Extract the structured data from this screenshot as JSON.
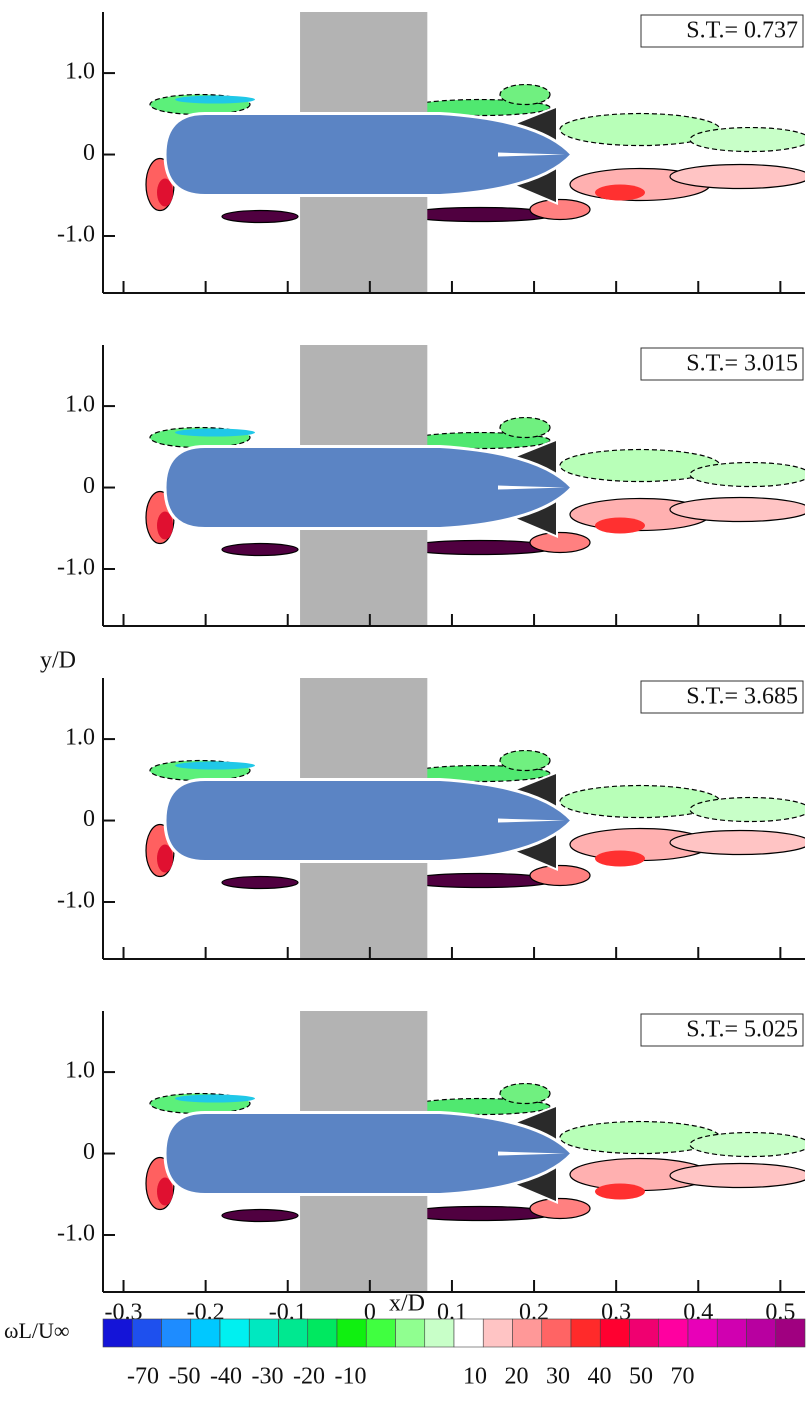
{
  "chart_data": [
    {
      "type": "contour",
      "annotation": "S.T.= 0.737",
      "xlim": [
        -0.325,
        0.53
      ],
      "ylim": [
        -1.7,
        1.75
      ],
      "xticks": [
        -0.3,
        -0.2,
        -0.1,
        0,
        0.1,
        0.2,
        0.3,
        0.4,
        0.5
      ],
      "yticks": [
        {
          "value": -1,
          "label": "-1.0"
        },
        0,
        {
          "value": 1,
          "label": "1.0"
        }
      ],
      "band": [
        -0.085,
        0.07
      ],
      "band_color": "#b3b3b3",
      "body_color": "#5b84c4"
    },
    {
      "type": "contour",
      "annotation": "S.T.= 3.015",
      "xlim": [
        -0.325,
        0.53
      ],
      "ylim": [
        -1.7,
        1.75
      ],
      "xticks": [
        -0.3,
        -0.2,
        -0.1,
        0,
        0.1,
        0.2,
        0.3,
        0.4,
        0.5
      ],
      "yticks": [
        {
          "value": -1,
          "label": "-1.0"
        },
        0,
        {
          "value": 1,
          "label": "1.0"
        }
      ],
      "band": [
        -0.085,
        0.07
      ],
      "band_color": "#b3b3b3",
      "body_color": "#5b84c4"
    },
    {
      "type": "contour",
      "annotation": "S.T.= 3.685",
      "xlim": [
        -0.325,
        0.53
      ],
      "ylim": [
        -1.7,
        1.75
      ],
      "xticks": [
        -0.3,
        -0.2,
        -0.1,
        0,
        0.1,
        0.2,
        0.3,
        0.4,
        0.5
      ],
      "yticks": [
        {
          "value": -1,
          "label": "-1.0"
        },
        0,
        {
          "value": 1,
          "label": "1.0"
        }
      ],
      "band": [
        -0.085,
        0.07
      ],
      "band_color": "#b3b3b3",
      "body_color": "#5b84c4"
    },
    {
      "type": "contour",
      "annotation": "S.T.= 5.025",
      "xlim": [
        -0.325,
        0.53
      ],
      "ylim": [
        -1.7,
        1.75
      ],
      "xticks": [
        -0.3,
        -0.2,
        -0.1,
        0,
        0.1,
        0.2,
        0.3,
        0.4,
        0.5
      ],
      "yticks": [
        {
          "value": -1,
          "label": "-1.0"
        },
        0,
        {
          "value": 1,
          "label": "1.0"
        }
      ],
      "band": [
        -0.085,
        0.07
      ],
      "band_color": "#b3b3b3",
      "body_color": "#5b84c4"
    }
  ],
  "xlabel": "x/D",
  "ylabel": "y/D",
  "colorbar": {
    "label": "ωL/U∞",
    "colors": [
      "#1414d8",
      "#1e50ee",
      "#1e8cff",
      "#00c8ff",
      "#00f0f0",
      "#00e8c0",
      "#00e890",
      "#00e860",
      "#10f010",
      "#40ff40",
      "#90ff90",
      "#c8ffc8",
      "#ffffff",
      "#ffc4c4",
      "#ff9898",
      "#ff6464",
      "#ff2a2a",
      "#ff0030",
      "#f00070",
      "#ff00a0",
      "#e800b8",
      "#d000b0",
      "#b800a0",
      "#a00080"
    ],
    "tick_labels": [
      -70,
      -50,
      -40,
      -30,
      -20,
      -10,
      null,
      null,
      10,
      20,
      30,
      40,
      50,
      70
    ]
  }
}
